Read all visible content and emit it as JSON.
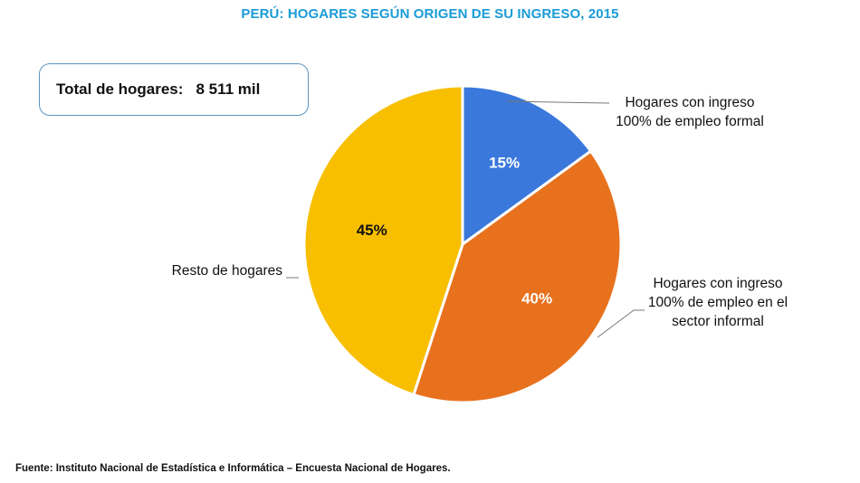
{
  "colors": {
    "title": "#1a9bd7",
    "formal": "#3a78dc",
    "informal": "#e8711e",
    "resto": "#f7bf00",
    "box_border": "#5b95c0"
  },
  "title": "PERÚ: HOGARES SEGÚN ORIGEN DE SU INGRESO, 2015",
  "total_box": {
    "label": "Total de hogares:",
    "value": "8 511  mil"
  },
  "source": "Fuente: Instituto Nacional de Estadística e Informática – Encuesta Nacional de Hogares.",
  "chart_data": {
    "type": "pie",
    "title": "PERÚ: HOGARES SEGÚN ORIGEN DE SU INGRESO, 2015",
    "slices": [
      {
        "label_lines": [
          "Hogares con ingreso",
          "100% de empleo formal"
        ],
        "value": 15,
        "pct_label": "15%",
        "color": "#3a78dc",
        "pct_color": "#ffffff"
      },
      {
        "label_lines": [
          "Hogares con ingreso",
          "100% de empleo en el",
          "sector informal"
        ],
        "value": 40,
        "pct_label": "40%",
        "color": "#e8711e",
        "pct_color": "#ffffff"
      },
      {
        "label_lines": [
          "Resto de hogares"
        ],
        "value": 45,
        "pct_label": "45%",
        "color": "#f7bf00",
        "pct_color": "#111111"
      }
    ]
  }
}
